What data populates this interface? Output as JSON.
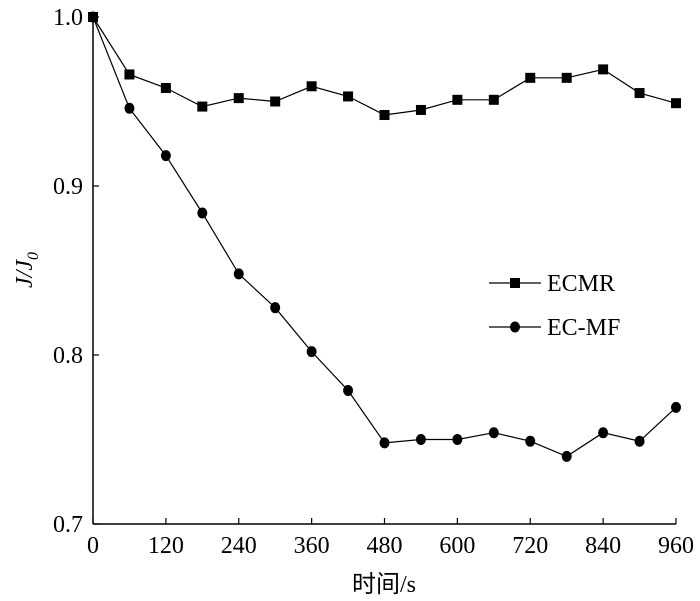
{
  "chart_data": {
    "type": "line",
    "title": "",
    "xlabel": "时间/s",
    "ylabel": "J/J0",
    "ylabel_main": "J/J",
    "ylabel_sub": "0",
    "xlim": [
      0,
      960
    ],
    "ylim": [
      0.7,
      1.0
    ],
    "x_ticks": [
      0,
      120,
      240,
      360,
      480,
      600,
      720,
      840,
      960
    ],
    "x_tick_labels": [
      "0",
      "120",
      "240",
      "360",
      "480",
      "600",
      "720",
      "840",
      "960"
    ],
    "y_ticks": [
      0.7,
      0.8,
      0.9,
      1.0
    ],
    "y_tick_labels": [
      "0.7",
      "0.8",
      "0.9",
      "1.0"
    ],
    "grid": false,
    "legend_position": "right",
    "x": [
      0,
      60,
      120,
      180,
      240,
      300,
      360,
      420,
      480,
      540,
      600,
      660,
      720,
      780,
      840,
      900,
      960
    ],
    "series": [
      {
        "name": "ECMR",
        "marker": "square",
        "color": "#000000",
        "values": [
          1.0,
          0.966,
          0.958,
          0.947,
          0.952,
          0.95,
          0.959,
          0.953,
          0.942,
          0.945,
          0.951,
          0.951,
          0.964,
          0.964,
          0.969,
          0.955,
          0.949
        ]
      },
      {
        "name": "EC-MF",
        "marker": "circle",
        "color": "#000000",
        "values": [
          1.0,
          0.946,
          0.918,
          0.884,
          0.848,
          0.828,
          0.802,
          0.779,
          0.748,
          0.75,
          0.75,
          0.754,
          0.749,
          0.74,
          0.754,
          0.749,
          0.769
        ]
      }
    ]
  }
}
